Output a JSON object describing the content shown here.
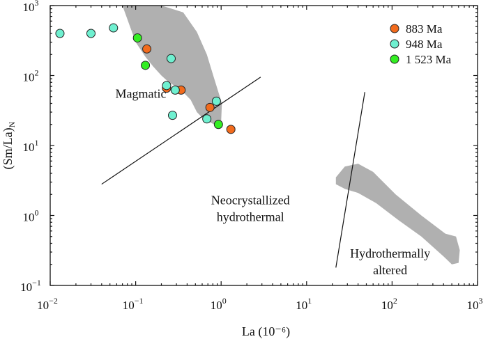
{
  "chart_data": {
    "type": "scatter",
    "title": "",
    "xlabel": "La (10⁻⁶)",
    "ylabel": "(Sm/La)N",
    "x_scale": "log",
    "y_scale": "log",
    "xlim": [
      0.01,
      1000
    ],
    "ylim": [
      0.1,
      1000
    ],
    "grid": false,
    "legend_position": "top-right",
    "x_ticks": [
      {
        "value": 0.01,
        "base": "10",
        "exp": "−2"
      },
      {
        "value": 0.1,
        "base": "10",
        "exp": "−1"
      },
      {
        "value": 1,
        "base": "10",
        "exp": "0"
      },
      {
        "value": 10,
        "base": "10",
        "exp": "1"
      },
      {
        "value": 100,
        "base": "10",
        "exp": "2"
      },
      {
        "value": 1000,
        "base": "10",
        "exp": "3"
      }
    ],
    "y_ticks": [
      {
        "value": 0.1,
        "base": "10",
        "exp": "−1"
      },
      {
        "value": 1,
        "base": "10",
        "exp": "0"
      },
      {
        "value": 10,
        "base": "10",
        "exp": "1"
      },
      {
        "value": 100,
        "base": "10",
        "exp": "2"
      },
      {
        "value": 1000,
        "base": "10",
        "exp": "3"
      }
    ],
    "series": [
      {
        "name": "883 Ma",
        "color": "#f26b1d",
        "points": [
          [
            0.135,
            240
          ],
          [
            0.23,
            66
          ],
          [
            0.34,
            62
          ],
          [
            0.74,
            35
          ],
          [
            1.3,
            17
          ]
        ]
      },
      {
        "name": "948 Ma",
        "color": "#6ff0d0",
        "points": [
          [
            0.013,
            400
          ],
          [
            0.03,
            400
          ],
          [
            0.055,
            480
          ],
          [
            0.26,
            175
          ],
          [
            0.23,
            72
          ],
          [
            0.29,
            62
          ],
          [
            0.27,
            27
          ],
          [
            0.68,
            24
          ],
          [
            0.88,
            43
          ]
        ]
      },
      {
        "name": "1 523 Ma",
        "color": "#33ee22",
        "points": [
          [
            0.105,
            345
          ],
          [
            0.13,
            140
          ],
          [
            0.93,
            20
          ]
        ]
      }
    ],
    "fields": [
      {
        "name": "magmatic-field",
        "color": "#b0b0b0",
        "polygon": [
          [
            0.07,
            1000
          ],
          [
            0.2,
            1000
          ],
          [
            0.36,
            800
          ],
          [
            0.52,
            420
          ],
          [
            0.68,
            200
          ],
          [
            0.82,
            95
          ],
          [
            1.02,
            40
          ],
          [
            1.0,
            22
          ],
          [
            0.83,
            20
          ],
          [
            0.62,
            24
          ],
          [
            0.52,
            30
          ],
          [
            0.44,
            45
          ],
          [
            0.34,
            62
          ],
          [
            0.24,
            82
          ],
          [
            0.2,
            100
          ],
          [
            0.16,
            135
          ],
          [
            0.13,
            185
          ],
          [
            0.1,
            300
          ],
          [
            0.085,
            520
          ],
          [
            0.07,
            1000
          ]
        ]
      },
      {
        "name": "hydrothermally-altered-field",
        "color": "#b0b0b0",
        "polygon": [
          [
            22,
            3.5
          ],
          [
            28,
            5
          ],
          [
            40,
            5.5
          ],
          [
            60,
            4.2
          ],
          [
            110,
            2.0
          ],
          [
            220,
            1.0
          ],
          [
            420,
            0.55
          ],
          [
            560,
            0.5
          ],
          [
            620,
            0.32
          ],
          [
            600,
            0.21
          ],
          [
            500,
            0.2
          ],
          [
            400,
            0.26
          ],
          [
            220,
            0.5
          ],
          [
            120,
            0.85
          ],
          [
            65,
            1.5
          ],
          [
            40,
            2.1
          ],
          [
            28,
            2.4
          ],
          [
            22,
            2.8
          ]
        ]
      }
    ],
    "boundaries": [
      {
        "name": "magmatic-boundary-line",
        "points": [
          [
            0.04,
            2.8
          ],
          [
            2.9,
            95
          ]
        ]
      },
      {
        "name": "altered-boundary-line",
        "points": [
          [
            22,
            0.18
          ],
          [
            48,
            58
          ]
        ]
      }
    ],
    "annotations": [
      {
        "name": "magmatic-label",
        "lines": [
          "Magmatic"
        ],
        "x": 0.115,
        "y": 48
      },
      {
        "name": "neocrystallized-label",
        "lines": [
          "Neocrystallized",
          "hydrothermal"
        ],
        "x": 2.2,
        "y": 1.45
      },
      {
        "name": "hydrothermally-altered-label",
        "lines": [
          "Hydrothermally",
          "altered"
        ],
        "x": 95,
        "y": 0.25
      }
    ]
  }
}
